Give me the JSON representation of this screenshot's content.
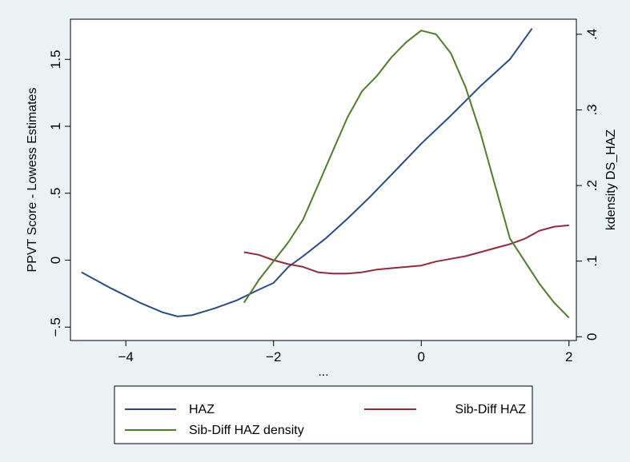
{
  "chart_data": {
    "type": "line",
    "xlabel": "...",
    "ylabel_left": "PPVT Score - Lowess Estimates",
    "ylabel_right": "kdensity DS_HAZ",
    "xlim": [
      -4.75,
      2.1
    ],
    "ylim_left": [
      -0.6,
      1.8
    ],
    "ylim_right": [
      -0.005,
      0.42
    ],
    "x_ticks": [
      -4,
      -2,
      0,
      2
    ],
    "x_tick_labels": [
      "−4",
      "−2",
      "0",
      "2"
    ],
    "y_left_ticks": [
      -0.5,
      0,
      0.5,
      1,
      1.5
    ],
    "y_left_tick_labels": [
      "−.5",
      "0",
      ".5",
      "1",
      "1.5"
    ],
    "y_right_ticks": [
      0,
      0.1,
      0.2,
      0.3,
      0.4
    ],
    "y_right_tick_labels": [
      "0",
      ".1",
      ".2",
      ".3",
      ".4"
    ],
    "grid": false,
    "legend_position": "bottom",
    "series": [
      {
        "name": "HAZ",
        "axis": "left",
        "color": "#2b4c80",
        "x": [
          -4.6,
          -4.2,
          -3.8,
          -3.5,
          -3.3,
          -3.1,
          -2.8,
          -2.5,
          -2.2,
          -2.0,
          -1.8,
          -1.6,
          -1.3,
          -1.0,
          -0.7,
          -0.4,
          0.0,
          0.4,
          0.8,
          1.2,
          1.5
        ],
        "y": [
          -0.09,
          -0.21,
          -0.32,
          -0.39,
          -0.42,
          -0.41,
          -0.36,
          -0.3,
          -0.22,
          -0.17,
          -0.05,
          0.03,
          0.16,
          0.31,
          0.47,
          0.64,
          0.87,
          1.08,
          1.3,
          1.5,
          1.73
        ]
      },
      {
        "name": "Sib-Diff HAZ",
        "axis": "left",
        "color": "#8e2c3a",
        "x": [
          -2.4,
          -2.2,
          -2.0,
          -1.8,
          -1.6,
          -1.4,
          -1.2,
          -1.0,
          -0.8,
          -0.6,
          -0.4,
          -0.2,
          0.0,
          0.2,
          0.4,
          0.6,
          0.8,
          1.0,
          1.2,
          1.4,
          1.6,
          1.8,
          2.0
        ],
        "y": [
          0.06,
          0.04,
          0.0,
          -0.03,
          -0.05,
          -0.09,
          -0.1,
          -0.1,
          -0.09,
          -0.07,
          -0.06,
          -0.05,
          -0.04,
          -0.01,
          0.01,
          0.03,
          0.06,
          0.09,
          0.12,
          0.16,
          0.22,
          0.25,
          0.26
        ]
      },
      {
        "name": "Sib-Diff HAZ density",
        "axis": "right",
        "color": "#4f7d2b",
        "x": [
          -2.4,
          -2.2,
          -2.0,
          -1.8,
          -1.6,
          -1.4,
          -1.2,
          -1.0,
          -0.8,
          -0.6,
          -0.4,
          -0.2,
          0.0,
          0.2,
          0.4,
          0.6,
          0.8,
          1.0,
          1.2,
          1.4,
          1.6,
          1.8,
          2.0
        ],
        "y": [
          0.045,
          0.075,
          0.1,
          0.125,
          0.155,
          0.2,
          0.245,
          0.29,
          0.325,
          0.345,
          0.37,
          0.39,
          0.405,
          0.4,
          0.375,
          0.33,
          0.27,
          0.2,
          0.13,
          0.1,
          0.07,
          0.045,
          0.025
        ]
      }
    ]
  }
}
